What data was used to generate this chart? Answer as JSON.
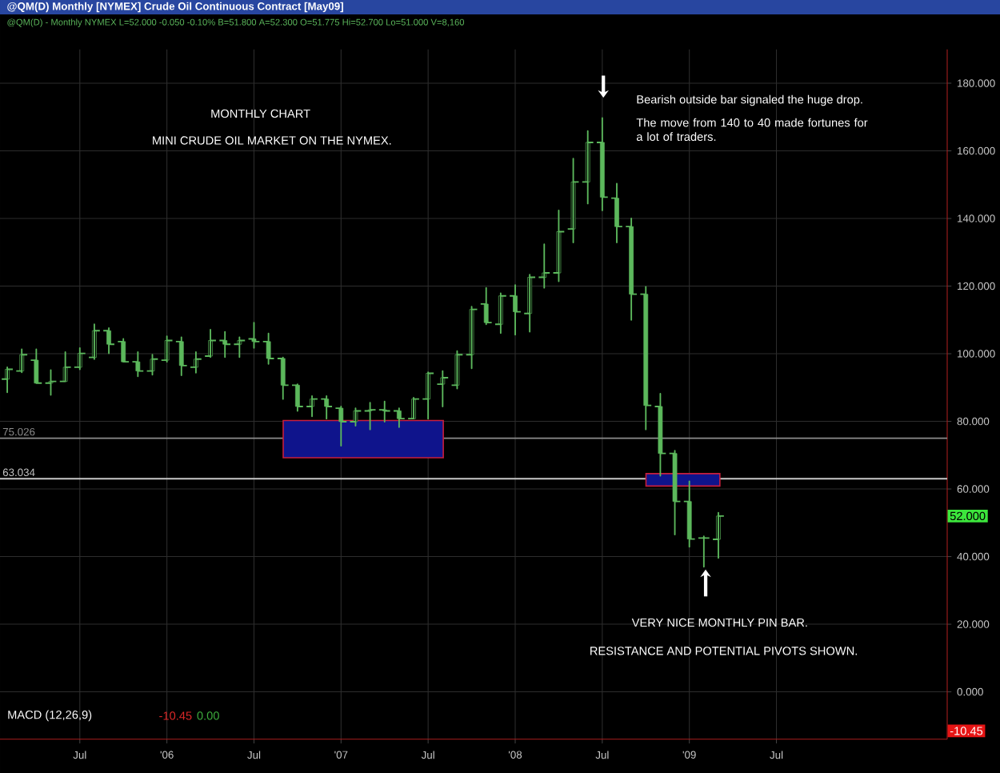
{
  "chart_data": {
    "type": "candlestick",
    "title": "@QM(D) Monthly [NYMEX] Crude Oil Continuous Contract [May09]",
    "subtitle": "@QM(D) - Monthly  NYMEX  L=52.000  -0.050  -0.10%  B=51.800  A=52.300  O=51.775  Hi=52.700  Lo=51.000  V=8,160",
    "x": [
      "2005-02",
      "2005-03",
      "2005-04",
      "2005-05",
      "2005-06",
      "2005-07",
      "2005-08",
      "2005-09",
      "2005-10",
      "2005-11",
      "2005-12",
      "2006-01",
      "2006-02",
      "2006-03",
      "2006-04",
      "2006-05",
      "2006-06",
      "2006-07",
      "2006-08",
      "2006-09",
      "2006-10",
      "2006-11",
      "2006-12",
      "2007-01",
      "2007-02",
      "2007-03",
      "2007-04",
      "2007-05",
      "2007-06",
      "2007-07",
      "2007-08",
      "2007-09",
      "2007-10",
      "2007-11",
      "2007-12",
      "2008-01",
      "2008-02",
      "2008-03",
      "2008-04",
      "2008-05",
      "2008-06",
      "2008-07",
      "2008-08",
      "2008-09",
      "2008-10",
      "2008-11",
      "2008-12",
      "2009-01",
      "2009-02",
      "2009-03"
    ],
    "ohlc": [
      [
        92.5,
        96.0,
        88.6,
        95.4
      ],
      [
        94.9,
        101.3,
        94.5,
        99.7
      ],
      [
        98.1,
        101.3,
        91.3,
        91.3
      ],
      [
        91.3,
        95.2,
        87.8,
        91.8
      ],
      [
        91.8,
        100.5,
        91.8,
        96.0
      ],
      [
        96.0,
        101.7,
        95.4,
        100.1
      ],
      [
        98.9,
        108.7,
        98.4,
        106.8
      ],
      [
        106.8,
        107.6,
        100.1,
        102.8
      ],
      [
        103.6,
        104.4,
        97.6,
        97.6
      ],
      [
        97.6,
        100.5,
        93.3,
        94.9
      ],
      [
        94.9,
        99.7,
        93.8,
        98.4
      ],
      [
        98.1,
        105.2,
        97.6,
        103.9
      ],
      [
        103.6,
        104.9,
        93.6,
        96.5
      ],
      [
        96.0,
        100.5,
        94.4,
        98.4
      ],
      [
        99.3,
        107.1,
        99.0,
        103.9
      ],
      [
        103.9,
        106.5,
        99.0,
        102.8
      ],
      [
        102.8,
        104.9,
        99.0,
        103.9
      ],
      [
        104.4,
        109.2,
        101.7,
        103.6
      ],
      [
        103.6,
        106.0,
        97.0,
        98.6
      ],
      [
        98.6,
        98.9,
        86.6,
        90.7
      ],
      [
        90.7,
        91.0,
        83.1,
        84.4
      ],
      [
        84.4,
        87.5,
        81.5,
        86.6
      ],
      [
        86.6,
        87.5,
        80.8,
        84.4
      ],
      [
        83.9,
        84.4,
        72.8,
        79.9
      ],
      [
        79.9,
        83.9,
        78.7,
        83.1
      ],
      [
        83.1,
        85.5,
        77.6,
        83.4
      ],
      [
        83.4,
        85.9,
        79.9,
        83.1
      ],
      [
        83.1,
        83.9,
        78.3,
        80.8
      ],
      [
        80.8,
        87.0,
        80.8,
        86.6
      ],
      [
        86.6,
        94.5,
        80.8,
        94.2
      ],
      [
        91.0,
        94.9,
        84.4,
        92.9
      ],
      [
        90.7,
        100.8,
        89.7,
        99.7
      ],
      [
        99.7,
        113.9,
        95.7,
        113.1
      ],
      [
        114.7,
        119.5,
        108.7,
        109.2
      ],
      [
        108.7,
        117.9,
        106.1,
        117.1
      ],
      [
        117.1,
        120.3,
        105.6,
        112.4
      ],
      [
        111.9,
        123.4,
        106.5,
        122.6
      ],
      [
        122.6,
        132.4,
        119.5,
        123.9
      ],
      [
        123.9,
        142.4,
        121.4,
        136.1
      ],
      [
        136.9,
        157.7,
        132.9,
        150.8
      ],
      [
        150.8,
        165.9,
        144.4,
        162.5
      ],
      [
        162.5,
        169.7,
        142.4,
        146.3
      ],
      [
        146.0,
        150.3,
        132.9,
        137.6
      ],
      [
        137.6,
        140.0,
        110.0,
        117.6
      ],
      [
        117.6,
        119.8,
        77.6,
        84.7
      ],
      [
        84.4,
        88.2,
        63.9,
        70.5
      ],
      [
        70.5,
        71.3,
        46.5,
        56.3
      ],
      [
        56.3,
        62.3,
        42.9,
        45.2
      ],
      [
        45.5,
        46.0,
        37.0,
        45.5
      ],
      [
        45.1,
        53.0,
        39.6,
        52.0
      ]
    ],
    "color": "#5cb85c",
    "xlim": [
      "2005-01-16",
      "2010-06-24"
    ],
    "xticks": [
      {
        "value": "2005-07",
        "label": "Jul"
      },
      {
        "value": "2006-01",
        "label": "'06"
      },
      {
        "value": "2006-07",
        "label": "Jul"
      },
      {
        "value": "2007-01",
        "label": "'07"
      },
      {
        "value": "2007-07",
        "label": "Jul"
      },
      {
        "value": "2008-01",
        "label": "'08"
      },
      {
        "value": "2008-07",
        "label": "Jul"
      },
      {
        "value": "2009-01",
        "label": "'09"
      },
      {
        "value": "2009-07",
        "label": "Jul"
      }
    ],
    "ylim": [
      -14,
      190
    ],
    "yticks": [
      {
        "value": 0,
        "label": "0.000"
      },
      {
        "value": 20,
        "label": "20.000"
      },
      {
        "value": 40,
        "label": "40.000"
      },
      {
        "value": 60,
        "label": "60.000"
      },
      {
        "value": 80,
        "label": "80.000"
      },
      {
        "value": 100,
        "label": "100.000"
      },
      {
        "value": 120,
        "label": "120.000"
      },
      {
        "value": 140,
        "label": "140.000"
      },
      {
        "value": 160,
        "label": "160.000"
      },
      {
        "value": 180,
        "label": "180.000"
      }
    ],
    "grid": true,
    "ref_lines": [
      {
        "axis": "y",
        "value": 75.026,
        "label": "75.026",
        "color": "#8c8c8c"
      },
      {
        "axis": "y",
        "value": 63.034,
        "label": "63.034",
        "color": "#c8c8c8"
      }
    ],
    "annotations": [
      "MONTHLY CHART",
      "MINI CRUDE OIL MARKET ON THE NYMEX.",
      "Bearish outside bar signaled the huge drop.",
      "The move from 140 to 40 made fortunes for a lot of traders.",
      "VERY NICE MONTHLY PIN BAR.",
      "RESISTANCE AND POTENTIAL PIVOTS SHOWN.",
      "MACD (12,26,9)",
      "-10.45",
      "0.00",
      {
        "text": "52.000",
        "y": 52
      },
      "-10.45"
    ]
  }
}
